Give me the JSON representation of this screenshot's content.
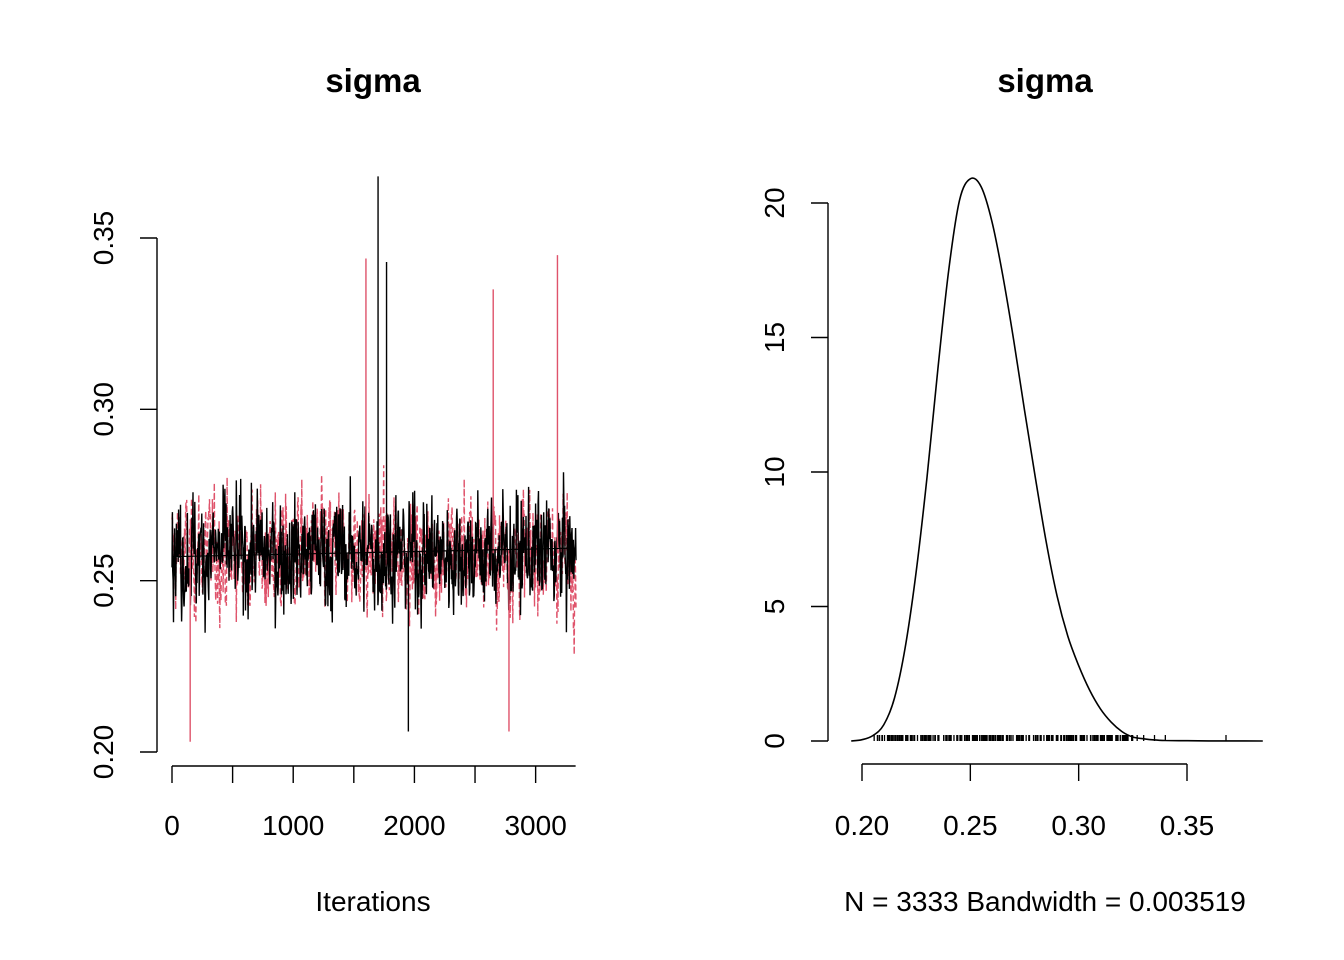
{
  "chart_data": [
    {
      "type": "line",
      "title": "sigma",
      "xlabel": "Iterations",
      "ylabel": "",
      "xlim": [
        0,
        3333
      ],
      "ylim": [
        0.2,
        0.35
      ],
      "x_ticks": [
        0,
        1000,
        2000,
        3000
      ],
      "x_tick_labels": [
        "0",
        "1000",
        "2000",
        "3000"
      ],
      "x_minor_ticks": [
        500,
        1500,
        2500
      ],
      "y_ticks": [
        0.2,
        0.25,
        0.3,
        0.35
      ],
      "y_tick_labels": [
        "0.20",
        "0.25",
        "0.30",
        "0.35"
      ],
      "series": [
        {
          "color": "#000000",
          "line_style": "solid",
          "n_iterations": 3333,
          "center": 0.258,
          "spread": 0.018,
          "min": 0.206,
          "max": 0.368
        },
        {
          "color": "#DF536B",
          "line_style": "dashed",
          "n_iterations": 3333,
          "center": 0.258,
          "spread": 0.018,
          "min": 0.203,
          "max": 0.345
        }
      ],
      "running_mean": {
        "color": "#000000",
        "start": 0.257,
        "end": 0.2595
      },
      "grid": false
    },
    {
      "type": "line",
      "title": "sigma",
      "xlabel": "N = 3333   Bandwidth = 0.003519",
      "ylabel": "",
      "xlim": [
        0.195,
        0.385
      ],
      "ylim": [
        0,
        21
      ],
      "x_ticks": [
        0.2,
        0.25,
        0.3,
        0.35
      ],
      "x_tick_labels": [
        "0.20",
        "0.25",
        "0.30",
        "0.35"
      ],
      "y_ticks": [
        0,
        5,
        10,
        15,
        20
      ],
      "y_tick_labels": [
        "0",
        "5",
        "10",
        "15",
        "20"
      ],
      "x": [
        0.195,
        0.2,
        0.205,
        0.21,
        0.215,
        0.22,
        0.225,
        0.23,
        0.235,
        0.24,
        0.245,
        0.25,
        0.255,
        0.26,
        0.265,
        0.27,
        0.275,
        0.28,
        0.285,
        0.29,
        0.295,
        0.3,
        0.305,
        0.31,
        0.315,
        0.32,
        0.325,
        0.33,
        0.335,
        0.34,
        0.35,
        0.36,
        0.37,
        0.385
      ],
      "y": [
        0.0,
        0.05,
        0.2,
        0.6,
        1.6,
        3.5,
        6.3,
        9.8,
        13.8,
        17.5,
        20.1,
        20.9,
        20.6,
        19.3,
        17.3,
        14.9,
        12.3,
        9.8,
        7.4,
        5.4,
        3.9,
        2.8,
        1.9,
        1.2,
        0.7,
        0.35,
        0.15,
        0.08,
        0.04,
        0.02,
        0.01,
        0.005,
        0.002,
        0.0
      ],
      "rug": {
        "from": 0.205,
        "to": 0.325,
        "outliers": [
          0.327,
          0.33,
          0.335,
          0.34,
          0.368
        ]
      },
      "grid": false
    }
  ]
}
